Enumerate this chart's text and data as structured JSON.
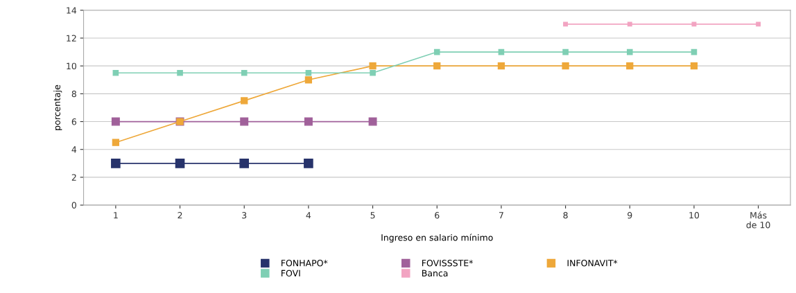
{
  "chart_data": {
    "type": "line",
    "xlabel": "Ingreso en salario mínimo",
    "ylabel": "porcentaje",
    "categories": [
      "1",
      "2",
      "3",
      "4",
      "5",
      "6",
      "7",
      "8",
      "9",
      "10",
      "Más\nde 10"
    ],
    "ylim": [
      0,
      14
    ],
    "yticks": [
      0,
      2,
      4,
      6,
      8,
      10,
      12,
      14
    ],
    "grid": "y",
    "legend": "bottom",
    "marker": "square",
    "line_style": "solid",
    "series": [
      {
        "name": "FONHAPO*",
        "color": "#27336b",
        "values": [
          3,
          3,
          3,
          3,
          null,
          null,
          null,
          null,
          null,
          null,
          null
        ]
      },
      {
        "name": "FOVISSSTE*",
        "color": "#a0609a",
        "values": [
          6,
          6,
          6,
          6,
          6,
          null,
          null,
          null,
          null,
          null,
          null
        ]
      },
      {
        "name": "INFONAVIT*",
        "color": "#eea83a",
        "values": [
          4.5,
          6,
          7.5,
          9,
          10,
          10,
          10,
          10,
          10,
          10,
          null
        ]
      },
      {
        "name": "FOVI",
        "color": "#7fcfb4",
        "values": [
          9.5,
          9.5,
          9.5,
          9.5,
          9.5,
          11,
          11,
          11,
          11,
          11,
          null
        ]
      },
      {
        "name": "Banca",
        "color": "#f2a4c2",
        "values": [
          null,
          null,
          null,
          null,
          null,
          null,
          null,
          13,
          13,
          13,
          13
        ]
      }
    ]
  }
}
